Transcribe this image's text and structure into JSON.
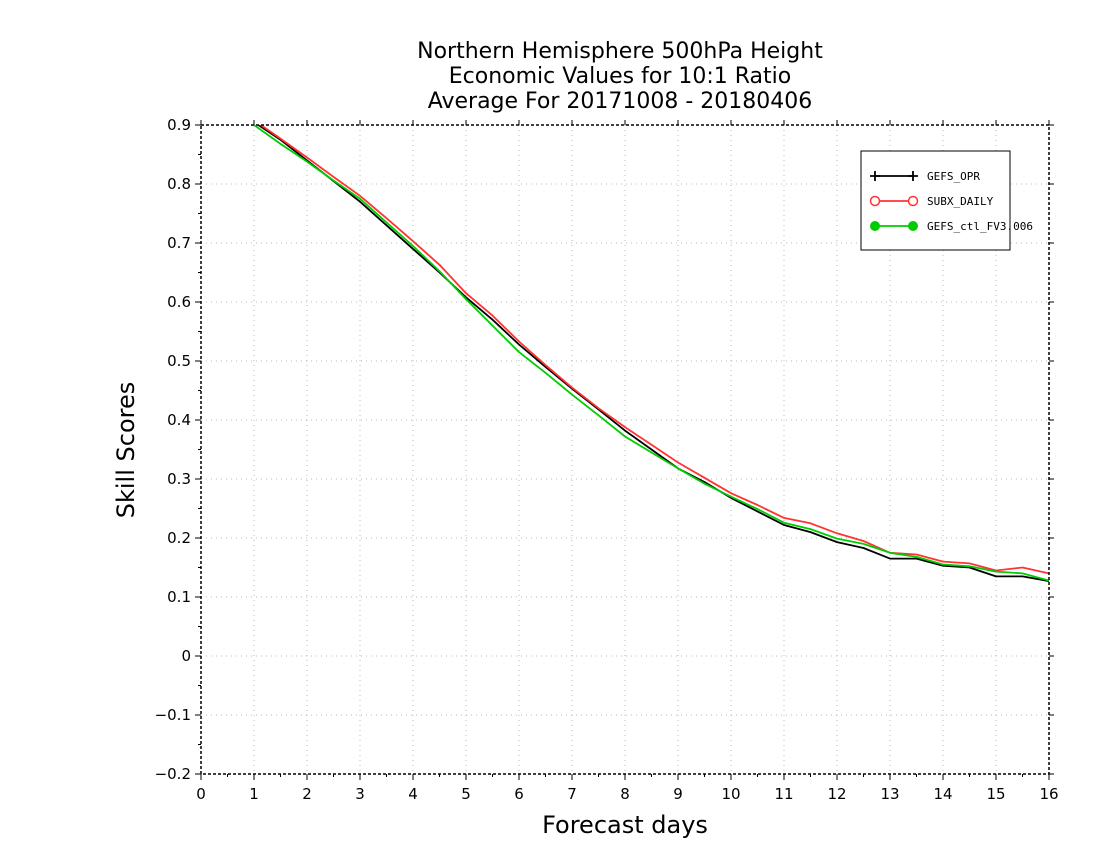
{
  "chart_data": {
    "type": "line",
    "title": [
      "Northern Hemisphere 500hPa Height",
      "Economic Values for 10:1 Ratio",
      "Average For 20171008 - 20180406"
    ],
    "xlabel": "Forecast days",
    "ylabel": "Skill Scores",
    "xlim": [
      0,
      16
    ],
    "ylim": [
      -0.2,
      0.9
    ],
    "x_ticks": [
      "0",
      "1",
      "2",
      "3",
      "4",
      "5",
      "6",
      "7",
      "8",
      "9",
      "10",
      "11",
      "12",
      "13",
      "14",
      "15",
      "16"
    ],
    "y_ticks": [
      "-0.2",
      "-0.1",
      "0",
      "0.1",
      "0.2",
      "0.3",
      "0.4",
      "0.5",
      "0.6",
      "0.7",
      "0.8",
      "0.9"
    ],
    "grid": true,
    "legend_position": "top-right",
    "x": [
      1,
      1.5,
      2,
      2.5,
      3,
      3.5,
      4,
      4.5,
      5,
      5.5,
      6,
      6.5,
      7,
      7.5,
      8,
      8.5,
      9,
      9.5,
      10,
      10.5,
      11,
      11.5,
      12,
      12.5,
      13,
      13.5,
      14,
      14.5,
      15,
      15.5,
      16
    ],
    "series": [
      {
        "name": "GEFS_OPR",
        "color": "#000000",
        "marker": "plus",
        "values": [
          0.905,
          0.875,
          0.84,
          0.805,
          0.77,
          0.73,
          0.69,
          0.65,
          0.608,
          0.57,
          0.528,
          0.49,
          0.453,
          0.418,
          0.382,
          0.35,
          0.318,
          0.295,
          0.268,
          0.245,
          0.222,
          0.21,
          0.193,
          0.183,
          0.165,
          0.165,
          0.153,
          0.15,
          0.135,
          0.135,
          0.127
        ]
      },
      {
        "name": "SUBX_DAILY",
        "color": "#ff3333",
        "marker": "open-circle",
        "values": [
          0.908,
          0.877,
          0.845,
          0.812,
          0.78,
          0.742,
          0.703,
          0.663,
          0.615,
          0.577,
          0.533,
          0.493,
          0.455,
          0.42,
          0.388,
          0.358,
          0.328,
          0.302,
          0.276,
          0.256,
          0.234,
          0.225,
          0.208,
          0.195,
          0.175,
          0.172,
          0.16,
          0.157,
          0.145,
          0.15,
          0.14
        ]
      },
      {
        "name": "GEFS_ctl_FV3.006",
        "color": "#00cc00",
        "marker": "filled-circle",
        "values": [
          0.9,
          0.868,
          0.838,
          0.806,
          0.775,
          0.735,
          0.695,
          0.652,
          0.605,
          0.56,
          0.515,
          0.48,
          0.443,
          0.408,
          0.372,
          0.345,
          0.318,
          0.292,
          0.27,
          0.249,
          0.226,
          0.215,
          0.199,
          0.19,
          0.175,
          0.168,
          0.155,
          0.152,
          0.143,
          0.14,
          0.128
        ]
      }
    ]
  }
}
